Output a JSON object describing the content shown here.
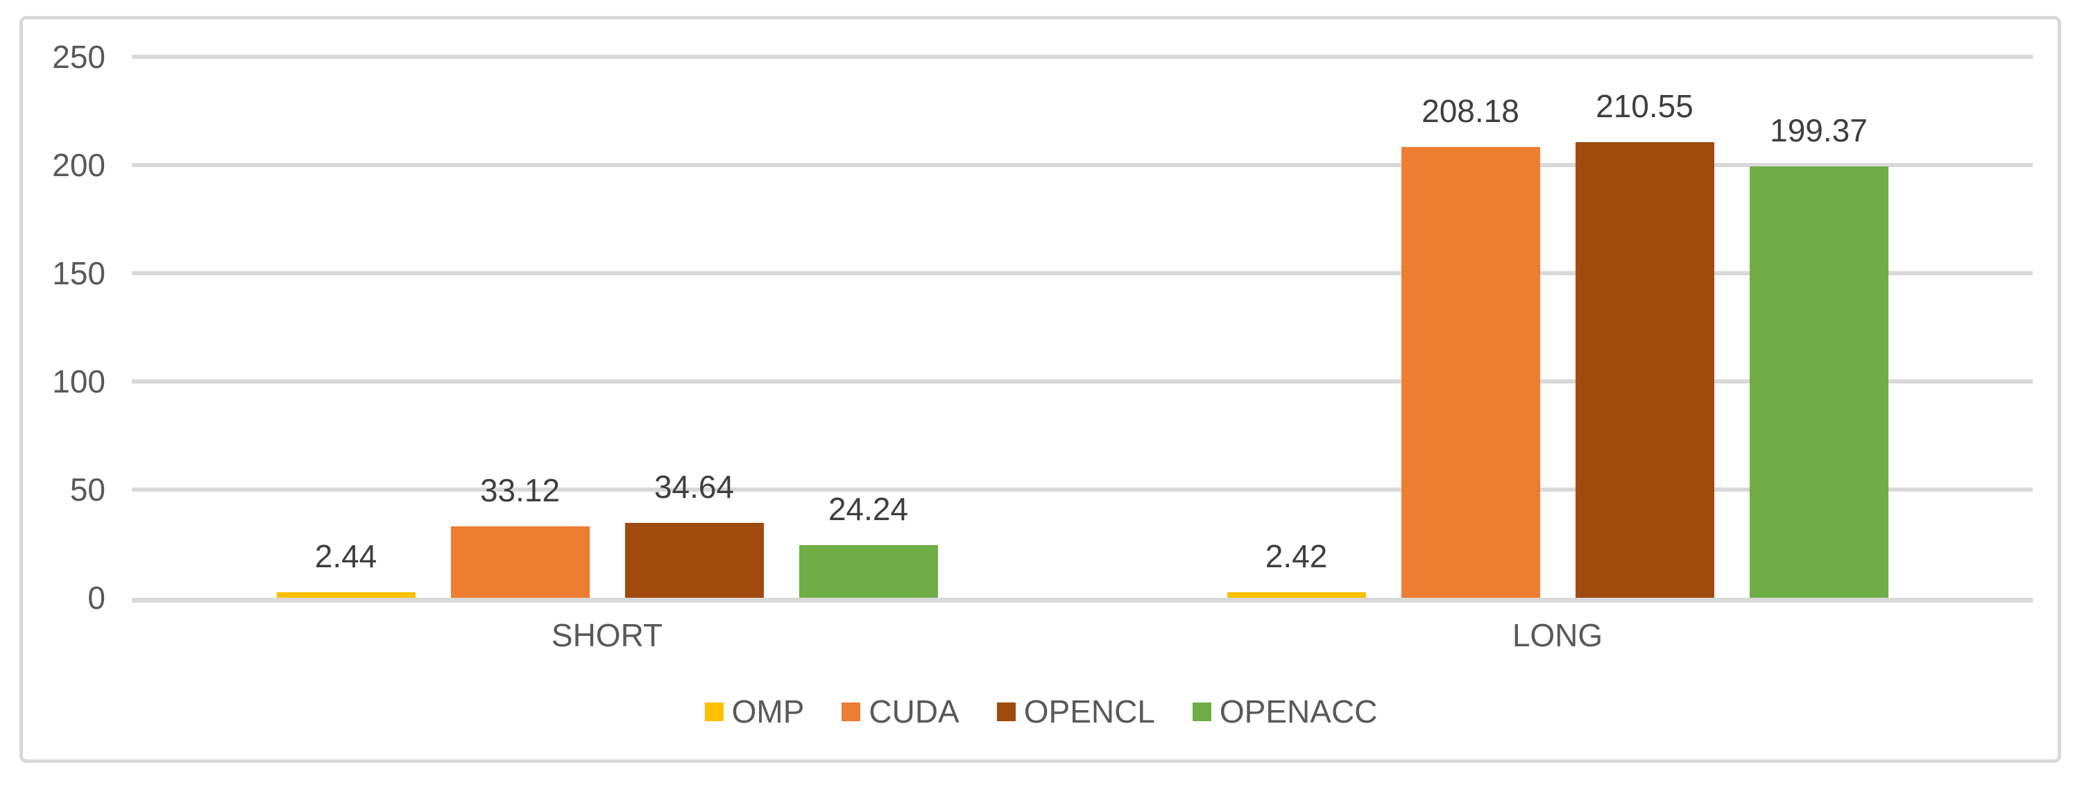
{
  "chart_data": {
    "type": "bar",
    "title": "",
    "categories": [
      "SHORT",
      "LONG"
    ],
    "series": [
      {
        "name": "OMP",
        "color": "#FFC000",
        "values": [
          2.44,
          2.42
        ]
      },
      {
        "name": "CUDA",
        "color": "#ED7D31",
        "values": [
          33.12,
          208.18
        ]
      },
      {
        "name": "OPENCL",
        "color": "#A04A0E",
        "values": [
          34.64,
          210.55
        ]
      },
      {
        "name": "OPENACC",
        "color": "#70AD47",
        "values": [
          24.24,
          199.37
        ]
      }
    ],
    "data_labels": [
      "2.44",
      "33.12",
      "34.64",
      "24.24",
      "2.42",
      "208.18",
      "210.55",
      "199.37"
    ],
    "ylim": [
      0,
      250
    ],
    "yticks": [
      0,
      50,
      100,
      150,
      200,
      250
    ],
    "grid": true,
    "legend_position": "bottom"
  },
  "colors": {
    "background": "#FFFFFF",
    "frame_border": "#D9D9D9",
    "gridline": "#D9D9D9",
    "axis_line": "#D9D9D9",
    "tick_text": "#595959",
    "category_text": "#595959",
    "legend_text": "#595959",
    "data_label_text": "#3F3F3F"
  }
}
